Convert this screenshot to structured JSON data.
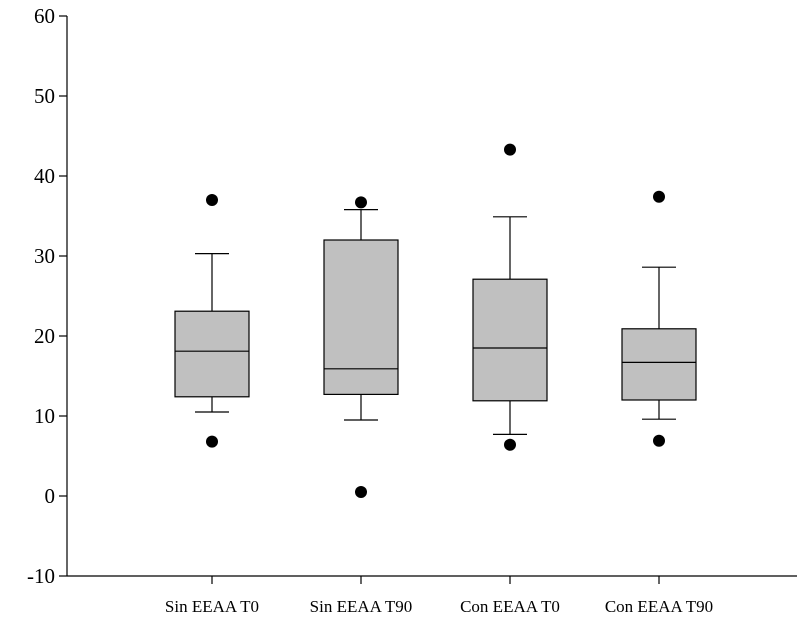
{
  "chart_data": {
    "type": "box",
    "title": "",
    "xlabel": "",
    "ylabel": "",
    "ylim": [
      -10,
      60
    ],
    "yticks": [
      -10,
      0,
      10,
      20,
      30,
      40,
      50,
      60
    ],
    "grid": false,
    "legend": "none",
    "box_color": "#c0c0c0",
    "categories": [
      "Sin EEAA T0",
      "Sin EEAA T90",
      "Con EEAA T0",
      "Con EEAA T90"
    ],
    "boxes": [
      {
        "category": "Sin EEAA T0",
        "whisker_low": 10.5,
        "q1": 12.4,
        "median": 18.1,
        "q3": 23.1,
        "whisker_high": 30.3,
        "outliers": [
          6.8,
          37.0
        ]
      },
      {
        "category": "Sin EEAA T90",
        "whisker_low": 9.5,
        "q1": 12.7,
        "median": 15.9,
        "q3": 32.0,
        "whisker_high": 35.8,
        "outliers": [
          0.5,
          36.7
        ]
      },
      {
        "category": "Con EEAA T0",
        "whisker_low": 7.7,
        "q1": 11.9,
        "median": 18.5,
        "q3": 27.1,
        "whisker_high": 34.9,
        "outliers": [
          6.4,
          43.3
        ]
      },
      {
        "category": "Con EEAA T90",
        "whisker_low": 9.6,
        "q1": 12.0,
        "median": 16.7,
        "q3": 20.9,
        "whisker_high": 28.6,
        "outliers": [
          6.9,
          37.4
        ]
      }
    ]
  }
}
